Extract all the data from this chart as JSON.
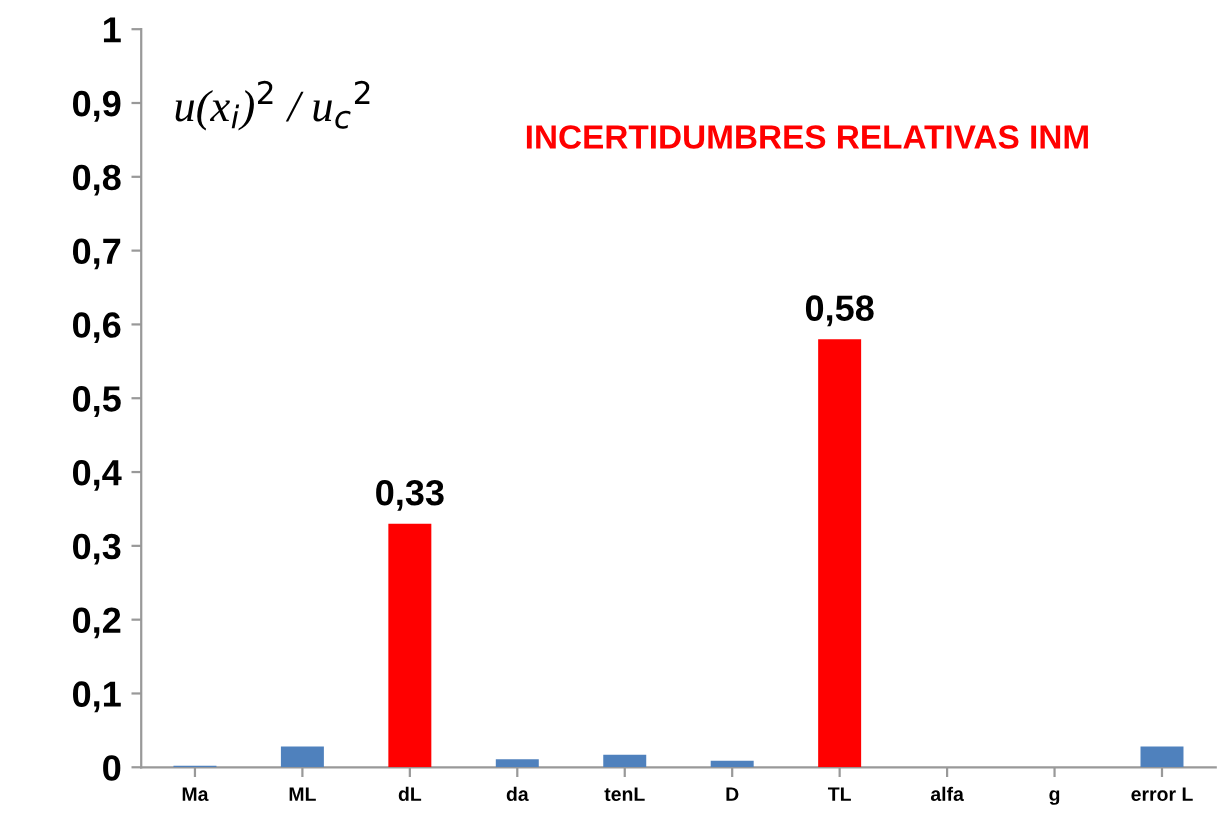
{
  "chart_data": {
    "type": "bar",
    "title": "INCERTIDUMBRES RELATIVAS INM",
    "ylabel": "u(x$_{i}$)$^{2}$ / u$_{c}$$^{2}$",
    "categories": [
      "Ma",
      "ML",
      "dL",
      "da",
      "tenL",
      "D",
      "TL",
      "alfa",
      "g",
      "error L"
    ],
    "values": [
      0.002,
      0.028,
      0.33,
      0.011,
      0.017,
      0.009,
      0.58,
      0,
      0,
      0.028
    ],
    "colors": [
      "#4f81bd",
      "#4f81bd",
      "#ff0000",
      "#4f81bd",
      "#4f81bd",
      "#4f81bd",
      "#ff0000",
      "#4f81bd",
      "#4f81bd",
      "#4f81bd"
    ],
    "value_labels": [
      null,
      null,
      "0,33",
      null,
      null,
      null,
      "0,58",
      null,
      null,
      null
    ],
    "ylim": [
      0,
      1
    ],
    "yticks": [
      0,
      {
        "value": 0.1,
        "label": "0,1"
      },
      {
        "value": 0.2,
        "label": "0,2"
      },
      {
        "value": 0.3,
        "label": "0,3"
      },
      {
        "value": 0.4,
        "label": "0,4"
      },
      {
        "value": 0.5,
        "label": "0,5"
      },
      {
        "value": 0.6,
        "label": "0,6"
      },
      {
        "value": 0.7,
        "label": "0,7"
      },
      {
        "value": 0.8,
        "label": "0,8"
      },
      {
        "value": 0.9,
        "label": "0,9"
      },
      1
    ],
    "grid": false,
    "legend": false
  }
}
